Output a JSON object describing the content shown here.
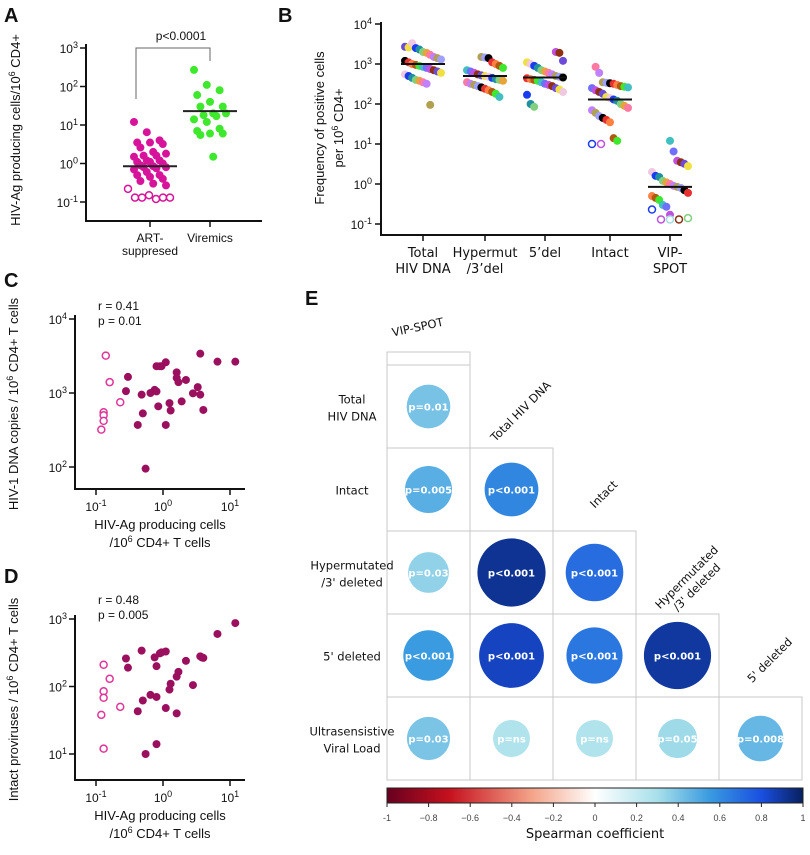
{
  "chart_data": [
    {
      "panel": "A",
      "type": "scatter",
      "ylabel": "HIV-Ag producing cells/10^6 CD4+",
      "ylabel_parts": [
        "HIV-Ag producing cells/10",
        "6",
        " CD4+"
      ],
      "yscale": "log",
      "ylim": [
        0.03,
        1000
      ],
      "yticks": [
        "10^-1",
        "10^0",
        "10^1",
        "10^2",
        "10^3"
      ],
      "categories": [
        "ART-\nsuppresed",
        "Viremics"
      ],
      "category_lines": [
        [
          "ART-",
          "suppresed"
        ],
        [
          "Viremics"
        ]
      ],
      "annotation": "p<0.0001",
      "series": [
        {
          "category": "ART-suppresed",
          "color": "#d6139a",
          "median": 0.85,
          "filled": [
            12,
            6.5,
            4,
            3.5,
            3.5,
            3.2,
            2.6,
            2,
            1.8,
            1.6,
            1.6,
            1.5,
            1.2,
            1.2,
            1.1,
            1.1,
            1,
            0.9,
            0.85,
            0.8,
            0.8,
            0.75,
            0.7,
            0.6,
            0.5,
            0.5,
            0.45,
            0.4,
            0.35,
            0.3,
            0.27
          ],
          "open": [
            0.22,
            0.13,
            0.13,
            0.15,
            0.12,
            0.13,
            0.13
          ]
        },
        {
          "category": "Viremics",
          "color": "#3ee82c",
          "median": 23,
          "filled": [
            270,
            110,
            80,
            60,
            40,
            30,
            30,
            20,
            20,
            18,
            17,
            14,
            12,
            8,
            7,
            6,
            6,
            5.5,
            1.5
          ],
          "open": []
        }
      ]
    },
    {
      "panel": "B",
      "type": "scatter",
      "ylabel_line1": "Frequency of positive cells",
      "ylabel_line2_parts": [
        "per 10",
        "6",
        " CD4+"
      ],
      "yscale": "log",
      "ylim": [
        0.06,
        10000
      ],
      "yticks": [
        "10^-1",
        "10^0",
        "10^1",
        "10^2",
        "10^3",
        "10^4"
      ],
      "categories": [
        [
          "Total",
          "HIV DNA"
        ],
        [
          "Hypermut",
          "/3’del"
        ],
        [
          "5’del"
        ],
        [
          "Intact"
        ],
        [
          "VIP-",
          "SPOT"
        ]
      ],
      "medians": [
        1000,
        500,
        460,
        130,
        0.85
      ],
      "groups": [
        {
          "filled": [
            2700,
            2600,
            3300,
            2500,
            2300,
            2000,
            1900,
            1700,
            1500,
            1400,
            1300,
            1200,
            1100,
            1000,
            950,
            900,
            850,
            800,
            750,
            700,
            650,
            600,
            550,
            500,
            450,
            400,
            380,
            350,
            320,
            95
          ],
          "open": []
        },
        {
          "filled": [
            1500,
            1450,
            1400,
            1100,
            1000,
            900,
            800,
            700,
            650,
            600,
            550,
            520,
            500,
            480,
            450,
            420,
            400,
            380,
            350,
            320,
            300,
            280,
            260,
            240,
            220,
            200,
            180,
            150
          ],
          "open": []
        },
        {
          "filled": [
            2000,
            1900,
            1200,
            1100,
            1000,
            900,
            800,
            700,
            650,
            600,
            550,
            500,
            480,
            460,
            440,
            420,
            400,
            380,
            350,
            320,
            300,
            280,
            250,
            230,
            200,
            170,
            100,
            85
          ],
          "open": []
        },
        {
          "filled": [
            850,
            600,
            350,
            340,
            330,
            320,
            300,
            280,
            270,
            260,
            250,
            220,
            200,
            180,
            150,
            140,
            130,
            120,
            100,
            90,
            80,
            70,
            60,
            50,
            45,
            40,
            35,
            14,
            12
          ],
          "open": [
            10,
            10
          ]
        },
        {
          "filled": [
            12,
            6.5,
            3.8,
            3.5,
            3.2,
            2.8,
            2,
            1.6,
            1.5,
            1.2,
            1.1,
            1.0,
            0.9,
            0.85,
            0.8,
            0.7,
            0.6,
            0.5,
            0.45,
            0.4,
            0.3,
            0.27,
            0.17
          ],
          "open": [
            0.23,
            0.13,
            0.13,
            0.13,
            0.14
          ]
        }
      ],
      "point_colors": [
        "#6b4bd8",
        "#1a3cf0",
        "#e8a33a",
        "#b0a050",
        "#e83030",
        "#3ee82c",
        "#c050e0",
        "#f0e040",
        "#2090a0",
        "#ff7aa0",
        "#a0a0ff",
        "#ff8040",
        "#40c0c0",
        "#903010",
        "#f0c8e0",
        "#80d080",
        "#c080ff",
        "#000000",
        "#b05a10",
        "#7070ff"
      ]
    },
    {
      "panel": "C",
      "type": "scatter",
      "annotation_r": "r = 0.41",
      "annotation_p": "p = 0.01",
      "ylabel_parts": [
        "HIV-1 DNA copies / 10",
        "6",
        " CD4+ T cells"
      ],
      "xlabel_line1": "HIV-Ag producing cells",
      "xlabel_line2_parts": [
        "/10",
        "6",
        " CD4+ T cells"
      ],
      "xscale": "log",
      "yscale": "log",
      "xlim": [
        0.05,
        15
      ],
      "ylim": [
        50,
        10000
      ],
      "xticks": [
        "10^-1",
        "10^0",
        "10^1"
      ],
      "yticks": [
        "10^2",
        "10^3",
        "10^4"
      ],
      "filled_color": "#9b0f5f",
      "open_color": "#e0359a",
      "open": [
        [
          0.14,
          3200
        ],
        [
          0.16,
          1400
        ],
        [
          0.23,
          750
        ],
        [
          0.13,
          550
        ],
        [
          0.13,
          500
        ],
        [
          0.13,
          420
        ],
        [
          0.12,
          320
        ]
      ],
      "filled": [
        [
          0.3,
          1650
        ],
        [
          0.28,
          1060
        ],
        [
          0.42,
          370
        ],
        [
          0.48,
          950
        ],
        [
          0.5,
          530
        ],
        [
          0.55,
          95
        ],
        [
          0.65,
          1000
        ],
        [
          0.75,
          1100
        ],
        [
          0.8,
          1050
        ],
        [
          0.8,
          2300
        ],
        [
          0.85,
          660
        ],
        [
          0.9,
          2300
        ],
        [
          0.95,
          2300
        ],
        [
          1.1,
          370
        ],
        [
          1.1,
          2600
        ],
        [
          1.25,
          730
        ],
        [
          1.3,
          580
        ],
        [
          1.6,
          1900
        ],
        [
          1.6,
          1600
        ],
        [
          1.7,
          1400
        ],
        [
          1.9,
          770
        ],
        [
          2.2,
          1500
        ],
        [
          2.8,
          990
        ],
        [
          3.3,
          1200
        ],
        [
          3.6,
          3400
        ],
        [
          3.6,
          950
        ],
        [
          4,
          590
        ],
        [
          6.5,
          2650
        ],
        [
          12,
          2650
        ]
      ]
    },
    {
      "panel": "D",
      "type": "scatter",
      "annotation_r": "r = 0.48",
      "annotation_p": "p = 0.005",
      "ylabel_parts": [
        "Intact proviruses / 10",
        "6",
        " CD4+ T cells"
      ],
      "xlabel_line1": "HIV-Ag producing cells",
      "xlabel_line2_parts": [
        "/10",
        "6",
        " CD4+ T cells"
      ],
      "xscale": "log",
      "yscale": "log",
      "xlim": [
        0.05,
        15
      ],
      "ylim": [
        4,
        1000
      ],
      "xticks": [
        "10^-1",
        "10^0",
        "10^1"
      ],
      "yticks": [
        "10^1",
        "10^2",
        "10^3"
      ],
      "filled_color": "#9b0f5f",
      "open_color": "#e0359a",
      "open": [
        [
          0.13,
          210
        ],
        [
          0.16,
          130
        ],
        [
          0.13,
          85
        ],
        [
          0.13,
          68
        ],
        [
          0.23,
          50
        ],
        [
          0.12,
          38
        ],
        [
          0.13,
          12
        ]
      ],
      "filled": [
        [
          0.28,
          260
        ],
        [
          0.3,
          190
        ],
        [
          0.42,
          43
        ],
        [
          0.48,
          340
        ],
        [
          0.5,
          62
        ],
        [
          0.55,
          10
        ],
        [
          0.65,
          75
        ],
        [
          0.75,
          270
        ],
        [
          0.8,
          200
        ],
        [
          0.8,
          70
        ],
        [
          0.8,
          14
        ],
        [
          0.9,
          310
        ],
        [
          0.95,
          320
        ],
        [
          1.1,
          330
        ],
        [
          1.1,
          48
        ],
        [
          1.25,
          90
        ],
        [
          1.3,
          110
        ],
        [
          1.6,
          140
        ],
        [
          1.6,
          40
        ],
        [
          1.7,
          165
        ],
        [
          2.2,
          240
        ],
        [
          2.8,
          105
        ],
        [
          3.6,
          280
        ],
        [
          3.8,
          270
        ],
        [
          4,
          265
        ],
        [
          6.5,
          600
        ],
        [
          12,
          870
        ]
      ]
    },
    {
      "panel": "E",
      "type": "heatmap",
      "column_labels": [
        "VIP-SPOT",
        "Total HIV DNA",
        "Intact",
        [
          "Hypermutated",
          "/3' deleted"
        ],
        "5' deleted"
      ],
      "row_labels": [
        [
          "Total",
          "HIV DNA"
        ],
        [
          "Intact"
        ],
        [
          "Hypermutated",
          "/3' deleted"
        ],
        [
          "5' deleted"
        ],
        [
          "Ultrasensistive",
          "Viral Load"
        ]
      ],
      "cells": [
        [
          {
            "r": 0.41,
            "p": "p=0.01"
          }
        ],
        [
          {
            "r": 0.48,
            "p": "p=0.005"
          },
          {
            "r": 0.62,
            "p": "p<0.001"
          }
        ],
        [
          {
            "r": 0.35,
            "p": "p=0.03"
          },
          {
            "r": 0.92,
            "p": "p<0.001"
          },
          {
            "r": 0.7,
            "p": "p<0.001"
          }
        ],
        [
          {
            "r": 0.55,
            "p": "p<0.001"
          },
          {
            "r": 0.85,
            "p": "p<0.001"
          },
          {
            "r": 0.67,
            "p": "p<0.001"
          },
          {
            "r": 0.9,
            "p": "p<0.001"
          }
        ],
        [
          {
            "r": 0.4,
            "p": "p=0.03"
          },
          {
            "r": 0.27,
            "p": "p=ns"
          },
          {
            "r": 0.27,
            "p": "p=ns"
          },
          {
            "r": 0.32,
            "p": "p=0.05"
          },
          {
            "r": 0.45,
            "p": "p=0.008"
          }
        ]
      ],
      "colorbar": {
        "title": "Spearman coefficient",
        "range": [
          -1,
          1
        ],
        "ticks": [
          "-1",
          "−0.8",
          "−0.6",
          "−0.4",
          "−0.2",
          "0",
          "0.2",
          "0.4",
          "0.6",
          "0.8",
          "1"
        ],
        "colors": [
          "#67001f",
          "#c5111e",
          "#f4a58a",
          "#ffffff",
          "#a8e0ea",
          "#3a9be0",
          "#1a4fe0",
          "#08205e"
        ]
      }
    }
  ],
  "panel_labels": [
    "A",
    "B",
    "C",
    "D",
    "E"
  ]
}
